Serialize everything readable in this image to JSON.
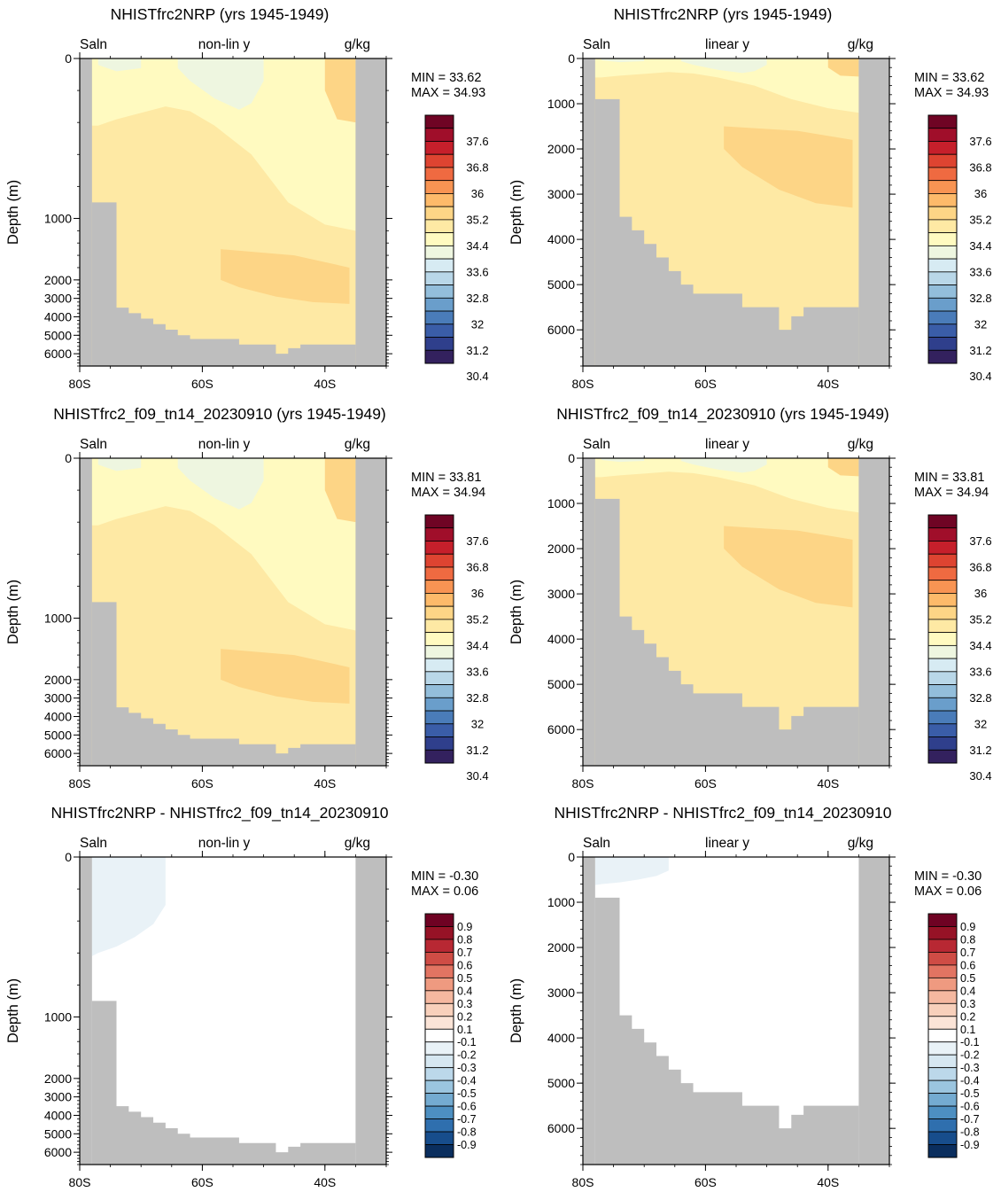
{
  "colors": {
    "land": "#bebebe",
    "frame": "#000000",
    "sal_levels": [
      "#33215e",
      "#2f3f8c",
      "#3a5da8",
      "#4a7cb9",
      "#6a9ecb",
      "#93bedb",
      "#b9d7e8",
      "#d7ebf3",
      "#eef6e0",
      "#fffac0",
      "#fee9a4",
      "#fdd586",
      "#fdba6a",
      "#f89453",
      "#ef6a41",
      "#de4431",
      "#c61f2b",
      "#a00e2a",
      "#6f0424"
    ],
    "diff_levels": [
      "#0a2e5e",
      "#174d8c",
      "#2f6fae",
      "#4d8fc1",
      "#74abd1",
      "#9bc5df",
      "#bcd8ea",
      "#d6e7f1",
      "#e9f2f7",
      "#ffffff",
      "#fbe4d7",
      "#f8d0bb",
      "#f5b8a0",
      "#ef9a80",
      "#e27462",
      "#cf4c45",
      "#b82833",
      "#961226",
      "#6f0223"
    ]
  },
  "chart_data": [
    {
      "id": "p1",
      "type": "heatmap",
      "title": "NHISTfrc2NRP (yrs 1945-1949)",
      "var_label": "Saln",
      "units_label": "g/kg",
      "mode_label": "non-lin y",
      "ylabel": "Depth (m)",
      "yscale": "nonlinear",
      "ylim": [
        6800,
        0
      ],
      "xlim": [
        -80,
        -30
      ],
      "x_ticks": [
        -80,
        -60,
        -40
      ],
      "x_tick_labels": [
        "80S",
        "60S",
        "40S"
      ],
      "y_ticks": [
        0,
        1000,
        2000,
        3000,
        4000,
        5000,
        6000
      ],
      "y_tick_labels": [
        "0",
        "1000",
        "2000",
        "3000",
        "4000",
        "5000",
        "6000"
      ],
      "min_text": "MIN =  33.62",
      "max_text": "MAX =  34.93",
      "colorbar": "sal",
      "field": "base",
      "regions": [
        {
          "label": "34.4 to 35.2",
          "value": 34.8
        },
        {
          "label": "33.6 to 34.4",
          "value": 34.0
        },
        {
          "label": "35.2 to 35.6",
          "value": 35.3
        }
      ]
    },
    {
      "id": "p2",
      "type": "heatmap",
      "title": "NHISTfrc2NRP (yrs 1945-1949)",
      "var_label": "Saln",
      "units_label": "g/kg",
      "mode_label": "linear y",
      "ylabel": "Depth (m)",
      "yscale": "linear",
      "ylim": [
        6800,
        0
      ],
      "xlim": [
        -80,
        -30
      ],
      "x_ticks": [
        -80,
        -60,
        -40
      ],
      "x_tick_labels": [
        "80S",
        "60S",
        "40S"
      ],
      "y_ticks": [
        0,
        1000,
        2000,
        3000,
        4000,
        5000,
        6000
      ],
      "y_tick_labels": [
        "0",
        "1000",
        "2000",
        "3000",
        "4000",
        "5000",
        "6000"
      ],
      "min_text": "MIN =  33.62",
      "max_text": "MAX =  34.93",
      "colorbar": "sal",
      "field": "base",
      "regions": [
        {
          "label": "34.4 to 35.2",
          "value": 34.8
        },
        {
          "label": "33.6 to 34.4",
          "value": 34.0
        },
        {
          "label": "35.2 to 35.6",
          "value": 35.3
        }
      ]
    },
    {
      "id": "p3",
      "type": "heatmap",
      "title": "NHISTfrc2_f09_tn14_20230910 (yrs 1945-1949)",
      "var_label": "Saln",
      "units_label": "g/kg",
      "mode_label": "non-lin y",
      "ylabel": "Depth (m)",
      "yscale": "nonlinear",
      "ylim": [
        6800,
        0
      ],
      "xlim": [
        -80,
        -30
      ],
      "x_ticks": [
        -80,
        -60,
        -40
      ],
      "x_tick_labels": [
        "80S",
        "60S",
        "40S"
      ],
      "y_ticks": [
        0,
        1000,
        2000,
        3000,
        4000,
        5000,
        6000
      ],
      "y_tick_labels": [
        "0",
        "1000",
        "2000",
        "3000",
        "4000",
        "5000",
        "6000"
      ],
      "min_text": "MIN =  33.81",
      "max_text": "MAX =  34.94",
      "colorbar": "sal",
      "field": "base",
      "regions": [
        {
          "label": "34.4 to 35.2",
          "value": 34.8
        },
        {
          "label": "33.6 to 34.4",
          "value": 34.0
        },
        {
          "label": "35.2 to 35.6",
          "value": 35.3
        }
      ]
    },
    {
      "id": "p4",
      "type": "heatmap",
      "title": "NHISTfrc2_f09_tn14_20230910 (yrs 1945-1949)",
      "var_label": "Saln",
      "units_label": "g/kg",
      "mode_label": "linear y",
      "ylabel": "Depth (m)",
      "yscale": "linear",
      "ylim": [
        6800,
        0
      ],
      "xlim": [
        -80,
        -30
      ],
      "x_ticks": [
        -80,
        -60,
        -40
      ],
      "x_tick_labels": [
        "80S",
        "60S",
        "40S"
      ],
      "y_ticks": [
        0,
        1000,
        2000,
        3000,
        4000,
        5000,
        6000
      ],
      "y_tick_labels": [
        "0",
        "1000",
        "2000",
        "3000",
        "4000",
        "5000",
        "6000"
      ],
      "min_text": "MIN =  33.81",
      "max_text": "MAX =  34.94",
      "colorbar": "sal",
      "field": "base",
      "regions": [
        {
          "label": "34.4 to 35.2",
          "value": 34.8
        },
        {
          "label": "33.6 to 34.4",
          "value": 34.0
        },
        {
          "label": "35.2 to 35.6",
          "value": 35.3
        }
      ]
    },
    {
      "id": "p5",
      "type": "heatmap",
      "title": "NHISTfrc2NRP - NHISTfrc2_f09_tn14_20230910",
      "var_label": "Saln",
      "units_label": "g/kg",
      "mode_label": "non-lin y",
      "ylabel": "Depth (m)",
      "yscale": "nonlinear",
      "ylim": [
        6800,
        0
      ],
      "xlim": [
        -80,
        -30
      ],
      "x_ticks": [
        -80,
        -60,
        -40
      ],
      "x_tick_labels": [
        "80S",
        "60S",
        "40S"
      ],
      "y_ticks": [
        0,
        1000,
        2000,
        3000,
        4000,
        5000,
        6000
      ],
      "y_tick_labels": [
        "0",
        "1000",
        "2000",
        "3000",
        "4000",
        "5000",
        "6000"
      ],
      "min_text": "MIN =  -0.30",
      "max_text": "MAX =   0.06",
      "colorbar": "diff",
      "field": "diff",
      "regions": [
        {
          "label": "-0.1 to 0.1",
          "value": 0.0
        },
        {
          "label": "-0.2 to -0.1",
          "value": -0.15
        }
      ]
    },
    {
      "id": "p6",
      "type": "heatmap",
      "title": "NHISTfrc2NRP - NHISTfrc2_f09_tn14_20230910",
      "var_label": "Saln",
      "units_label": "g/kg",
      "mode_label": "linear y",
      "ylabel": "Depth (m)",
      "yscale": "linear",
      "ylim": [
        6800,
        0
      ],
      "xlim": [
        -80,
        -30
      ],
      "x_ticks": [
        -80,
        -60,
        -40
      ],
      "x_tick_labels": [
        "80S",
        "60S",
        "40S"
      ],
      "y_ticks": [
        0,
        1000,
        2000,
        3000,
        4000,
        5000,
        6000
      ],
      "y_tick_labels": [
        "0",
        "1000",
        "2000",
        "3000",
        "4000",
        "5000",
        "6000"
      ],
      "min_text": "MIN =  -0.30",
      "max_text": "MAX =   0.06",
      "colorbar": "diff",
      "field": "diff",
      "regions": [
        {
          "label": "-0.1 to 0.1",
          "value": 0.0
        },
        {
          "label": "-0.2 to -0.1",
          "value": -0.15
        }
      ]
    }
  ],
  "colorbars": {
    "sal": {
      "labels": [
        "37.6",
        "36.8",
        "36",
        "35.2",
        "34.4",
        "33.6",
        "32.8",
        "32",
        "31.2",
        "30.4"
      ]
    },
    "diff": {
      "labels": [
        "0.9",
        "0.8",
        "0.7",
        "0.6",
        "0.5",
        "0.4",
        "0.3",
        "0.2",
        "0.1",
        "-0.1",
        "-0.2",
        "-0.3",
        "-0.4",
        "-0.5",
        "-0.6",
        "-0.7",
        "-0.8",
        "-0.9"
      ]
    }
  }
}
